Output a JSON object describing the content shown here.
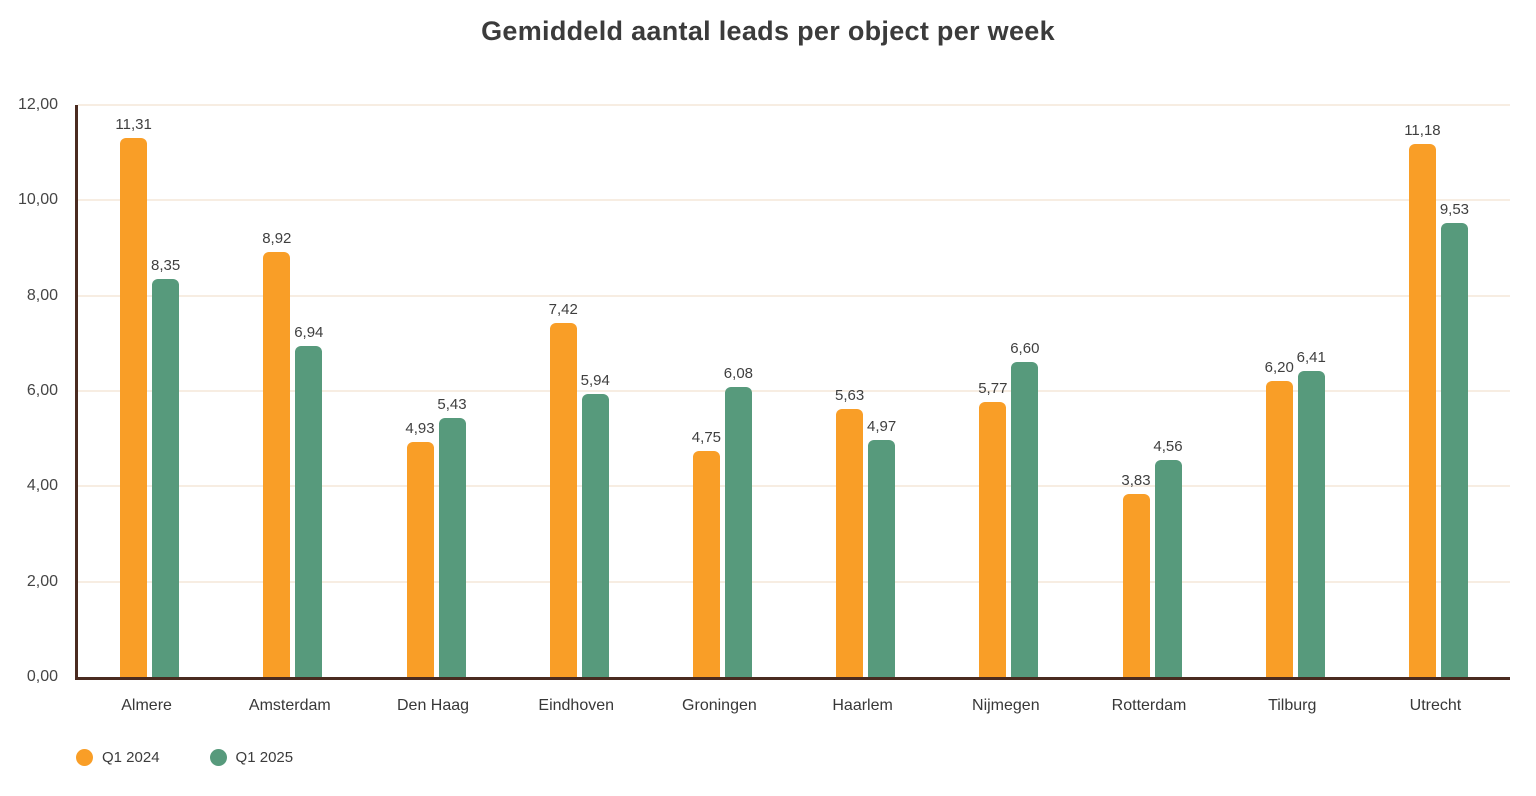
{
  "title": "Gemiddeld aantal leads per object per week",
  "colors": {
    "series_q1_2024": "#f99e27",
    "series_q1_2025": "#579a7c",
    "axis": "#4a2b20",
    "gridline": "#f7ede2",
    "text": "#3b3b3b"
  },
  "legend": {
    "items": [
      {
        "label": "Q1 2024",
        "color": "#f99e27"
      },
      {
        "label": "Q1 2025",
        "color": "#579a7c"
      }
    ]
  },
  "chart_data": {
    "type": "bar",
    "title": "Gemiddeld aantal leads per object per week",
    "categories": [
      "Almere",
      "Amsterdam",
      "Den Haag",
      "Eindhoven",
      "Groningen",
      "Haarlem",
      "Nijmegen",
      "Rotterdam",
      "Tilburg",
      "Utrecht"
    ],
    "series": [
      {
        "name": "Q1 2024",
        "color": "#f99e27",
        "values": [
          11.31,
          8.92,
          4.93,
          7.42,
          4.75,
          5.63,
          5.77,
          3.83,
          6.2,
          11.18
        ],
        "value_labels": [
          "11,31",
          "8,92",
          "4,93",
          "7,42",
          "4,75",
          "5,63",
          "5,77",
          "3,83",
          "6,20",
          "11,18"
        ]
      },
      {
        "name": "Q1 2025",
        "color": "#579a7c",
        "values": [
          8.35,
          6.94,
          5.43,
          5.94,
          6.08,
          4.97,
          6.6,
          4.56,
          6.41,
          9.53
        ],
        "value_labels": [
          "8,35",
          "6,94",
          "5,43",
          "5,94",
          "6,08",
          "4,97",
          "6,60",
          "4,56",
          "6,41",
          "9,53"
        ]
      }
    ],
    "xlabel": "",
    "ylabel": "",
    "ylim": [
      0,
      12
    ],
    "yticks": [
      0,
      2,
      4,
      6,
      8,
      10,
      12
    ],
    "ytick_labels": [
      "0,00",
      "2,00",
      "4,00",
      "6,00",
      "8,00",
      "10,00",
      "12,00"
    ],
    "grid": true,
    "legend_position": "bottom-left"
  }
}
